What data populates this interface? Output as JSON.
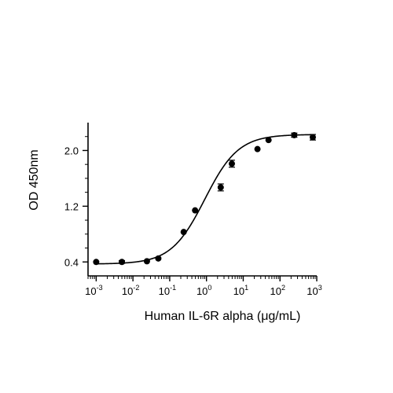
{
  "chart_data": {
    "type": "scatter",
    "xlabel": "Human IL-6R alpha (μg/mL)",
    "ylabel": "OD 450nm",
    "xscale": "log",
    "xlim": [
      0.0006,
      1000
    ],
    "ylim": [
      0.2,
      2.4
    ],
    "x_ticks": [
      {
        "value": 0.001,
        "base": "10",
        "exp": "-3"
      },
      {
        "value": 0.01,
        "base": "10",
        "exp": "-2"
      },
      {
        "value": 0.1,
        "base": "10",
        "exp": "-1"
      },
      {
        "value": 1,
        "base": "10",
        "exp": "0"
      },
      {
        "value": 10,
        "base": "10",
        "exp": "1"
      },
      {
        "value": 100,
        "base": "10",
        "exp": "2"
      },
      {
        "value": 1000,
        "base": "10",
        "exp": "3"
      }
    ],
    "y_ticks": [
      {
        "value": 0.4,
        "label": "0.4"
      },
      {
        "value": 1.2,
        "label": "1.2"
      },
      {
        "value": 2.0,
        "label": "2.0"
      }
    ],
    "grid": false,
    "marker_color": "#000000",
    "points": [
      {
        "x": 0.001,
        "y": 0.4,
        "err": 0
      },
      {
        "x": 0.005,
        "y": 0.4,
        "err": 0.02
      },
      {
        "x": 0.024,
        "y": 0.41,
        "err": 0
      },
      {
        "x": 0.049,
        "y": 0.45,
        "err": 0
      },
      {
        "x": 0.24,
        "y": 0.83,
        "err": 0
      },
      {
        "x": 0.49,
        "y": 1.14,
        "err": 0
      },
      {
        "x": 2.44,
        "y": 1.47,
        "err": 0.05
      },
      {
        "x": 4.9,
        "y": 1.81,
        "err": 0.05
      },
      {
        "x": 24.4,
        "y": 2.02,
        "err": 0
      },
      {
        "x": 48.8,
        "y": 2.15,
        "err": 0
      },
      {
        "x": 244,
        "y": 2.22,
        "err": 0.03
      },
      {
        "x": 780,
        "y": 2.19,
        "err": 0.04
      }
    ],
    "fit": {
      "model": "4PL",
      "bottom": 0.37,
      "top": 2.23,
      "ec50": 0.9,
      "hill": 0.95
    }
  }
}
